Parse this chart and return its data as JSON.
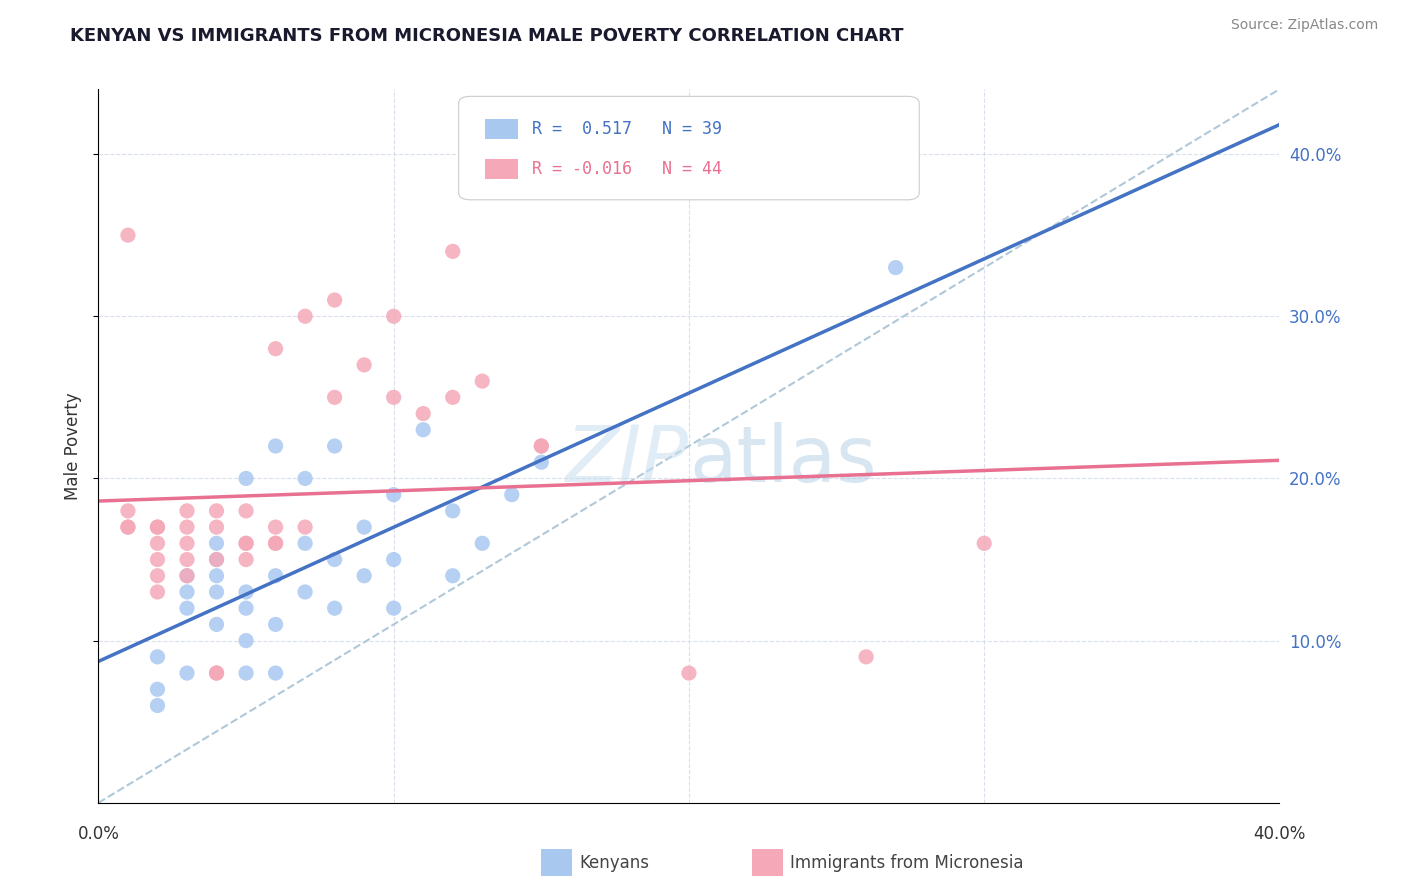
{
  "title": "KENYAN VS IMMIGRANTS FROM MICRONESIA MALE POVERTY CORRELATION CHART",
  "source": "Source: ZipAtlas.com",
  "ylabel": "Male Poverty",
  "right_yticks": [
    "10.0%",
    "20.0%",
    "30.0%",
    "40.0%"
  ],
  "right_ytick_vals": [
    0.1,
    0.2,
    0.3,
    0.4
  ],
  "xmin": 0.0,
  "xmax": 0.4,
  "ymin": 0.0,
  "ymax": 0.44,
  "kenyan_R": 0.517,
  "kenyan_N": 39,
  "micronesia_R": -0.016,
  "micronesia_N": 44,
  "kenyan_color": "#a8c8f0",
  "micronesia_color": "#f4a8b8",
  "kenyan_line_color": "#4472c4",
  "micronesia_line_color": "#e87090",
  "diagonal_color": "#b0c8d8",
  "kenyan_x": [
    0.02,
    0.03,
    0.03,
    0.03,
    0.04,
    0.04,
    0.04,
    0.04,
    0.04,
    0.05,
    0.05,
    0.05,
    0.05,
    0.06,
    0.06,
    0.06,
    0.07,
    0.07,
    0.07,
    0.08,
    0.08,
    0.08,
    0.09,
    0.09,
    0.1,
    0.1,
    0.1,
    0.11,
    0.12,
    0.12,
    0.13,
    0.14,
    0.15,
    0.02,
    0.03,
    0.05,
    0.06,
    0.27,
    0.02
  ],
  "kenyan_y": [
    0.09,
    0.12,
    0.13,
    0.14,
    0.11,
    0.13,
    0.14,
    0.15,
    0.16,
    0.1,
    0.12,
    0.13,
    0.2,
    0.11,
    0.14,
    0.22,
    0.13,
    0.16,
    0.2,
    0.12,
    0.15,
    0.22,
    0.14,
    0.17,
    0.12,
    0.15,
    0.19,
    0.23,
    0.14,
    0.18,
    0.16,
    0.19,
    0.21,
    0.07,
    0.08,
    0.08,
    0.08,
    0.33,
    0.06
  ],
  "micronesia_x": [
    0.01,
    0.01,
    0.01,
    0.02,
    0.02,
    0.02,
    0.02,
    0.02,
    0.03,
    0.03,
    0.03,
    0.03,
    0.04,
    0.04,
    0.04,
    0.05,
    0.05,
    0.05,
    0.06,
    0.06,
    0.06,
    0.07,
    0.07,
    0.08,
    0.08,
    0.09,
    0.1,
    0.1,
    0.11,
    0.12,
    0.12,
    0.13,
    0.15,
    0.15,
    0.2,
    0.26,
    0.3,
    0.01,
    0.02,
    0.03,
    0.04,
    0.04,
    0.05,
    0.06
  ],
  "micronesia_y": [
    0.17,
    0.17,
    0.18,
    0.14,
    0.15,
    0.16,
    0.17,
    0.17,
    0.15,
    0.16,
    0.17,
    0.18,
    0.15,
    0.17,
    0.18,
    0.15,
    0.16,
    0.18,
    0.16,
    0.17,
    0.28,
    0.17,
    0.3,
    0.25,
    0.31,
    0.27,
    0.25,
    0.3,
    0.24,
    0.25,
    0.34,
    0.26,
    0.22,
    0.22,
    0.08,
    0.09,
    0.16,
    0.35,
    0.13,
    0.14,
    0.08,
    0.08,
    0.16,
    0.16
  ]
}
